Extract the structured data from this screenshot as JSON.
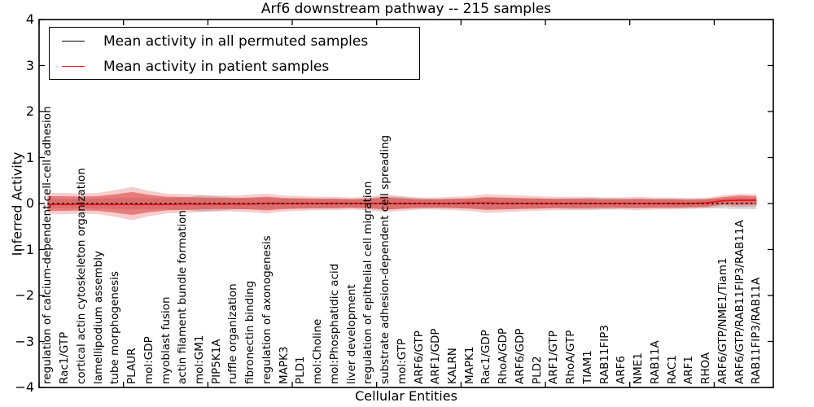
{
  "chart_data": {
    "type": "area",
    "title": "Arf6 downstream pathway -- 215 samples",
    "xlabel": "Cellular Entities",
    "ylabel": "Inferred Activity",
    "ylim": [
      -4,
      4
    ],
    "yticks": [
      4,
      3,
      2,
      1,
      0,
      -1,
      -2,
      -3,
      -4
    ],
    "yticklabels": [
      "4",
      "3",
      "2",
      "1",
      "0",
      "−1",
      "−2",
      "−3",
      "−4"
    ],
    "xticks": [
      0,
      5,
      10,
      15,
      20,
      25,
      30,
      35,
      40
    ],
    "grid": false,
    "legend_position": "upper left",
    "categories": [
      "regulation of calcium-dependent cell-cell adhesion",
      "Rac1/GTP",
      "cortical actin cytoskeleton organization",
      "lamellipodium assembly",
      "tube morphogenesis",
      "PLAUR",
      "mol:GDP",
      "myoblast fusion",
      "actin filament bundle formation",
      "mol:GM1",
      "PIP5K1A",
      "ruffle organization",
      "fibronectin binding",
      "regulation of axonogenesis",
      "MAPK3",
      "PLD1",
      "mol:Choline",
      "mol:Phosphatidic acid",
      "liver development",
      "regulation of epithelial cell migration",
      "substrate adhesion-dependent cell spreading",
      "mol:GTP",
      "ARF6/GTP",
      "ARF1/GDP",
      "KALRN",
      "MAPK1",
      "Rac1/GDP",
      "RhoA/GDP",
      "ARF6/GDP",
      "PLD2",
      "ARF1/GTP",
      "RhoA/GTP",
      "TIAM1",
      "RAB11FIP3",
      "ARF6",
      "NME1",
      "RAB11A",
      "RAC1",
      "ARF1",
      "RHOA",
      "ARF6/GTP/NME1/Tiam1",
      "ARF6/GTP/RAB11FIP3/RAB11A",
      "RAB11FIP3/RAB11A"
    ],
    "series": [
      {
        "name": "Mean activity in all permuted samples",
        "color": "#000000",
        "dash": "2,4",
        "values": [
          0,
          0,
          0,
          0,
          0,
          0,
          0,
          0,
          0,
          0,
          0,
          0,
          0,
          0,
          0,
          0,
          0,
          0,
          0,
          0,
          0,
          0,
          0,
          0,
          0,
          0,
          0,
          0,
          0,
          0,
          0,
          0,
          0,
          0,
          0,
          0,
          0,
          0,
          0,
          0,
          0,
          0,
          0
        ]
      },
      {
        "name": "Mean activity in patient samples",
        "color": "#ee1111",
        "dash": "",
        "values": [
          -0.02,
          -0.02,
          -0.02,
          -0.02,
          -0.02,
          -0.02,
          -0.02,
          -0.02,
          -0.01,
          -0.01,
          -0.01,
          -0.01,
          -0.01,
          0,
          0,
          0,
          0,
          0,
          0,
          0,
          0,
          0,
          0,
          0,
          0,
          0.01,
          0.01,
          0,
          0,
          0,
          0,
          0,
          0,
          0,
          0,
          0,
          0,
          0,
          0,
          0.01,
          0.06,
          0.07,
          0.07
        ]
      }
    ],
    "bands": [
      {
        "name": "permuted-samples-band",
        "color": "#999999",
        "layers": [
          [
            1.0,
            0.4
          ]
        ],
        "upper": [
          0.1,
          0.1,
          0.1,
          0.11,
          0.12,
          0.13,
          0.12,
          0.12,
          0.13,
          0.17,
          0.16,
          0.13,
          0.12,
          0.12,
          0.11,
          0.11,
          0.11,
          0.11,
          0.1,
          0.12,
          0.16,
          0.14,
          0.11,
          0.1,
          0.1,
          0.11,
          0.12,
          0.12,
          0.11,
          0.11,
          0.1,
          0.11,
          0.12,
          0.12,
          0.11,
          0.1,
          0.1,
          0.1,
          0.1,
          0.1,
          0.11,
          0.12,
          0.12
        ],
        "lower": [
          -0.1,
          -0.1,
          -0.1,
          -0.11,
          -0.12,
          -0.13,
          -0.12,
          -0.12,
          -0.13,
          -0.17,
          -0.16,
          -0.13,
          -0.12,
          -0.12,
          -0.11,
          -0.11,
          -0.11,
          -0.11,
          -0.1,
          -0.12,
          -0.14,
          -0.12,
          -0.11,
          -0.1,
          -0.1,
          -0.11,
          -0.12,
          -0.12,
          -0.11,
          -0.11,
          -0.1,
          -0.12,
          -0.12,
          -0.12,
          -0.11,
          -0.1,
          -0.1,
          -0.1,
          -0.1,
          -0.1,
          -0.11,
          -0.12,
          -0.12
        ]
      },
      {
        "name": "patient-samples-band",
        "color": "#dd3939",
        "layers": [
          [
            1.45,
            0.25
          ],
          [
            1.0,
            0.55
          ]
        ],
        "upper": [
          0.16,
          0.16,
          0.15,
          0.16,
          0.2,
          0.25,
          0.19,
          0.15,
          0.14,
          0.13,
          0.12,
          0.12,
          0.13,
          0.15,
          0.12,
          0.11,
          0.1,
          0.1,
          0.09,
          0.1,
          0.13,
          0.11,
          0.09,
          0.09,
          0.1,
          0.11,
          0.14,
          0.13,
          0.12,
          0.11,
          0.1,
          0.1,
          0.1,
          0.09,
          0.09,
          0.1,
          0.09,
          0.09,
          0.08,
          0.09,
          0.14,
          0.17,
          0.16
        ],
        "lower": [
          -0.16,
          -0.16,
          -0.15,
          -0.16,
          -0.2,
          -0.25,
          -0.19,
          -0.15,
          -0.14,
          -0.13,
          -0.12,
          -0.12,
          -0.13,
          -0.15,
          -0.12,
          -0.11,
          -0.1,
          -0.1,
          -0.09,
          -0.1,
          -0.13,
          -0.11,
          -0.09,
          -0.09,
          -0.1,
          -0.11,
          -0.14,
          -0.13,
          -0.12,
          -0.11,
          -0.1,
          -0.1,
          -0.1,
          -0.09,
          -0.09,
          -0.1,
          -0.09,
          -0.09,
          -0.08,
          -0.07,
          -0.02,
          -0.03,
          -0.02
        ]
      }
    ]
  }
}
